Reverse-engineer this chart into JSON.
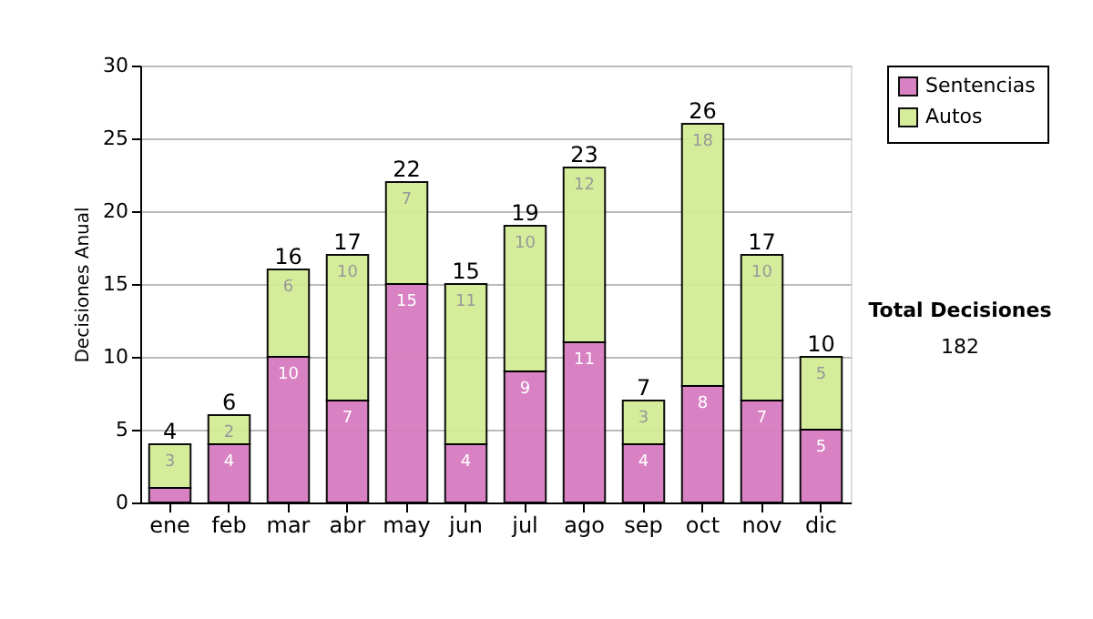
{
  "chart_data": {
    "type": "bar",
    "stacked": true,
    "ylabel": "Decisiones Anual",
    "categories": [
      "ene",
      "feb",
      "mar",
      "abr",
      "may",
      "jun",
      "jul",
      "ago",
      "sep",
      "oct",
      "nov",
      "dic"
    ],
    "series": [
      {
        "name": "Sentencias",
        "color": "#d87cc0",
        "values": [
          1,
          4,
          10,
          7,
          15,
          4,
          9,
          11,
          4,
          8,
          7,
          5
        ],
        "value_labels": [
          null,
          "4",
          "10",
          "7",
          "15",
          "4",
          "9",
          "11",
          "4",
          "8",
          "7",
          "5"
        ]
      },
      {
        "name": "Autos",
        "color": "#d3eb96",
        "values": [
          3,
          2,
          6,
          10,
          7,
          11,
          10,
          12,
          3,
          18,
          10,
          5
        ],
        "value_labels": [
          "3",
          "2",
          "6",
          "10",
          "7",
          "11",
          "10",
          "12",
          "3",
          "18",
          "10",
          "5"
        ]
      }
    ],
    "totals": [
      "4",
      "6",
      "16",
      "17",
      "22",
      "15",
      "19",
      "23",
      "7",
      "26",
      "17",
      "10"
    ],
    "ylim": [
      0,
      30
    ],
    "yticks": [
      0,
      5,
      10,
      15,
      20,
      25,
      30
    ],
    "grid": "y",
    "legend": "right",
    "annotations": [
      "Total Decisiones",
      "182"
    ]
  }
}
